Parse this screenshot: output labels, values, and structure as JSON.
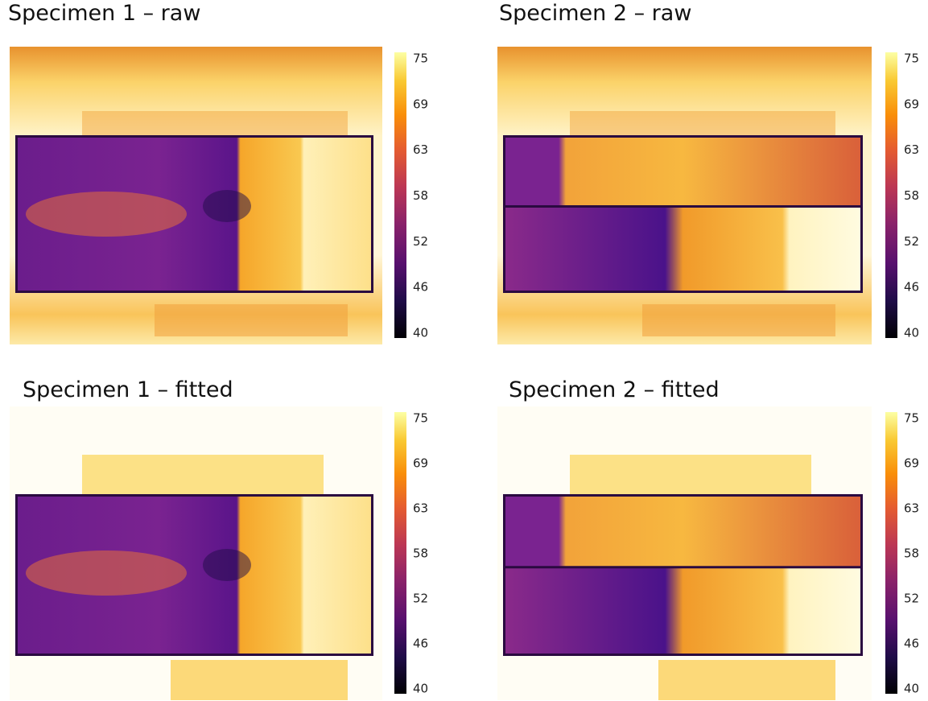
{
  "panels": [
    {
      "title": "Specimen 1 – raw",
      "colorbar": {
        "ticks": [
          75,
          69,
          63,
          58,
          52,
          46,
          40
        ]
      }
    },
    {
      "title": "Specimen 2 – raw",
      "colorbar": {
        "ticks": [
          75,
          69,
          63,
          58,
          52,
          46,
          40
        ]
      }
    },
    {
      "title": "Specimen 1 – fitted",
      "colorbar": {
        "ticks": [
          75,
          69,
          63,
          58,
          52,
          46,
          40
        ]
      }
    },
    {
      "title": "Specimen 2 – fitted",
      "colorbar": {
        "ticks": [
          75,
          69,
          63,
          58,
          52,
          46,
          40
        ]
      }
    }
  ]
}
